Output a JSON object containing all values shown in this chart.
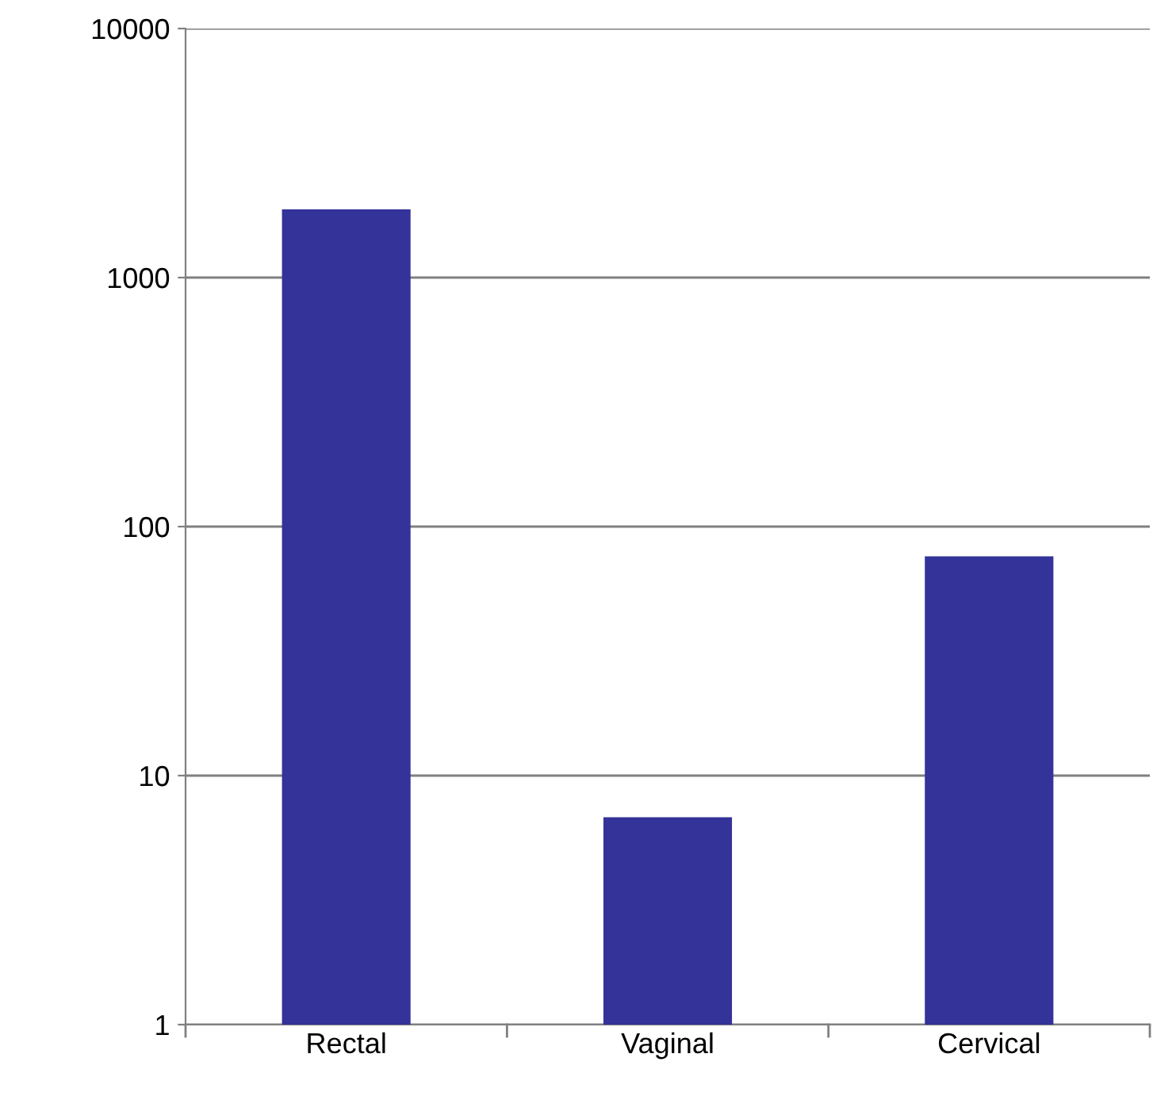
{
  "chart_data": {
    "type": "bar",
    "categories": [
      "Rectal",
      "Vaginal",
      "Cervical"
    ],
    "values": [
      1880,
      6.8,
      76
    ],
    "color": "#333399",
    "log": true,
    "ylim": [
      1,
      10000
    ],
    "yticks": [
      1,
      10,
      100,
      1000,
      10000
    ],
    "grid": "y"
  }
}
